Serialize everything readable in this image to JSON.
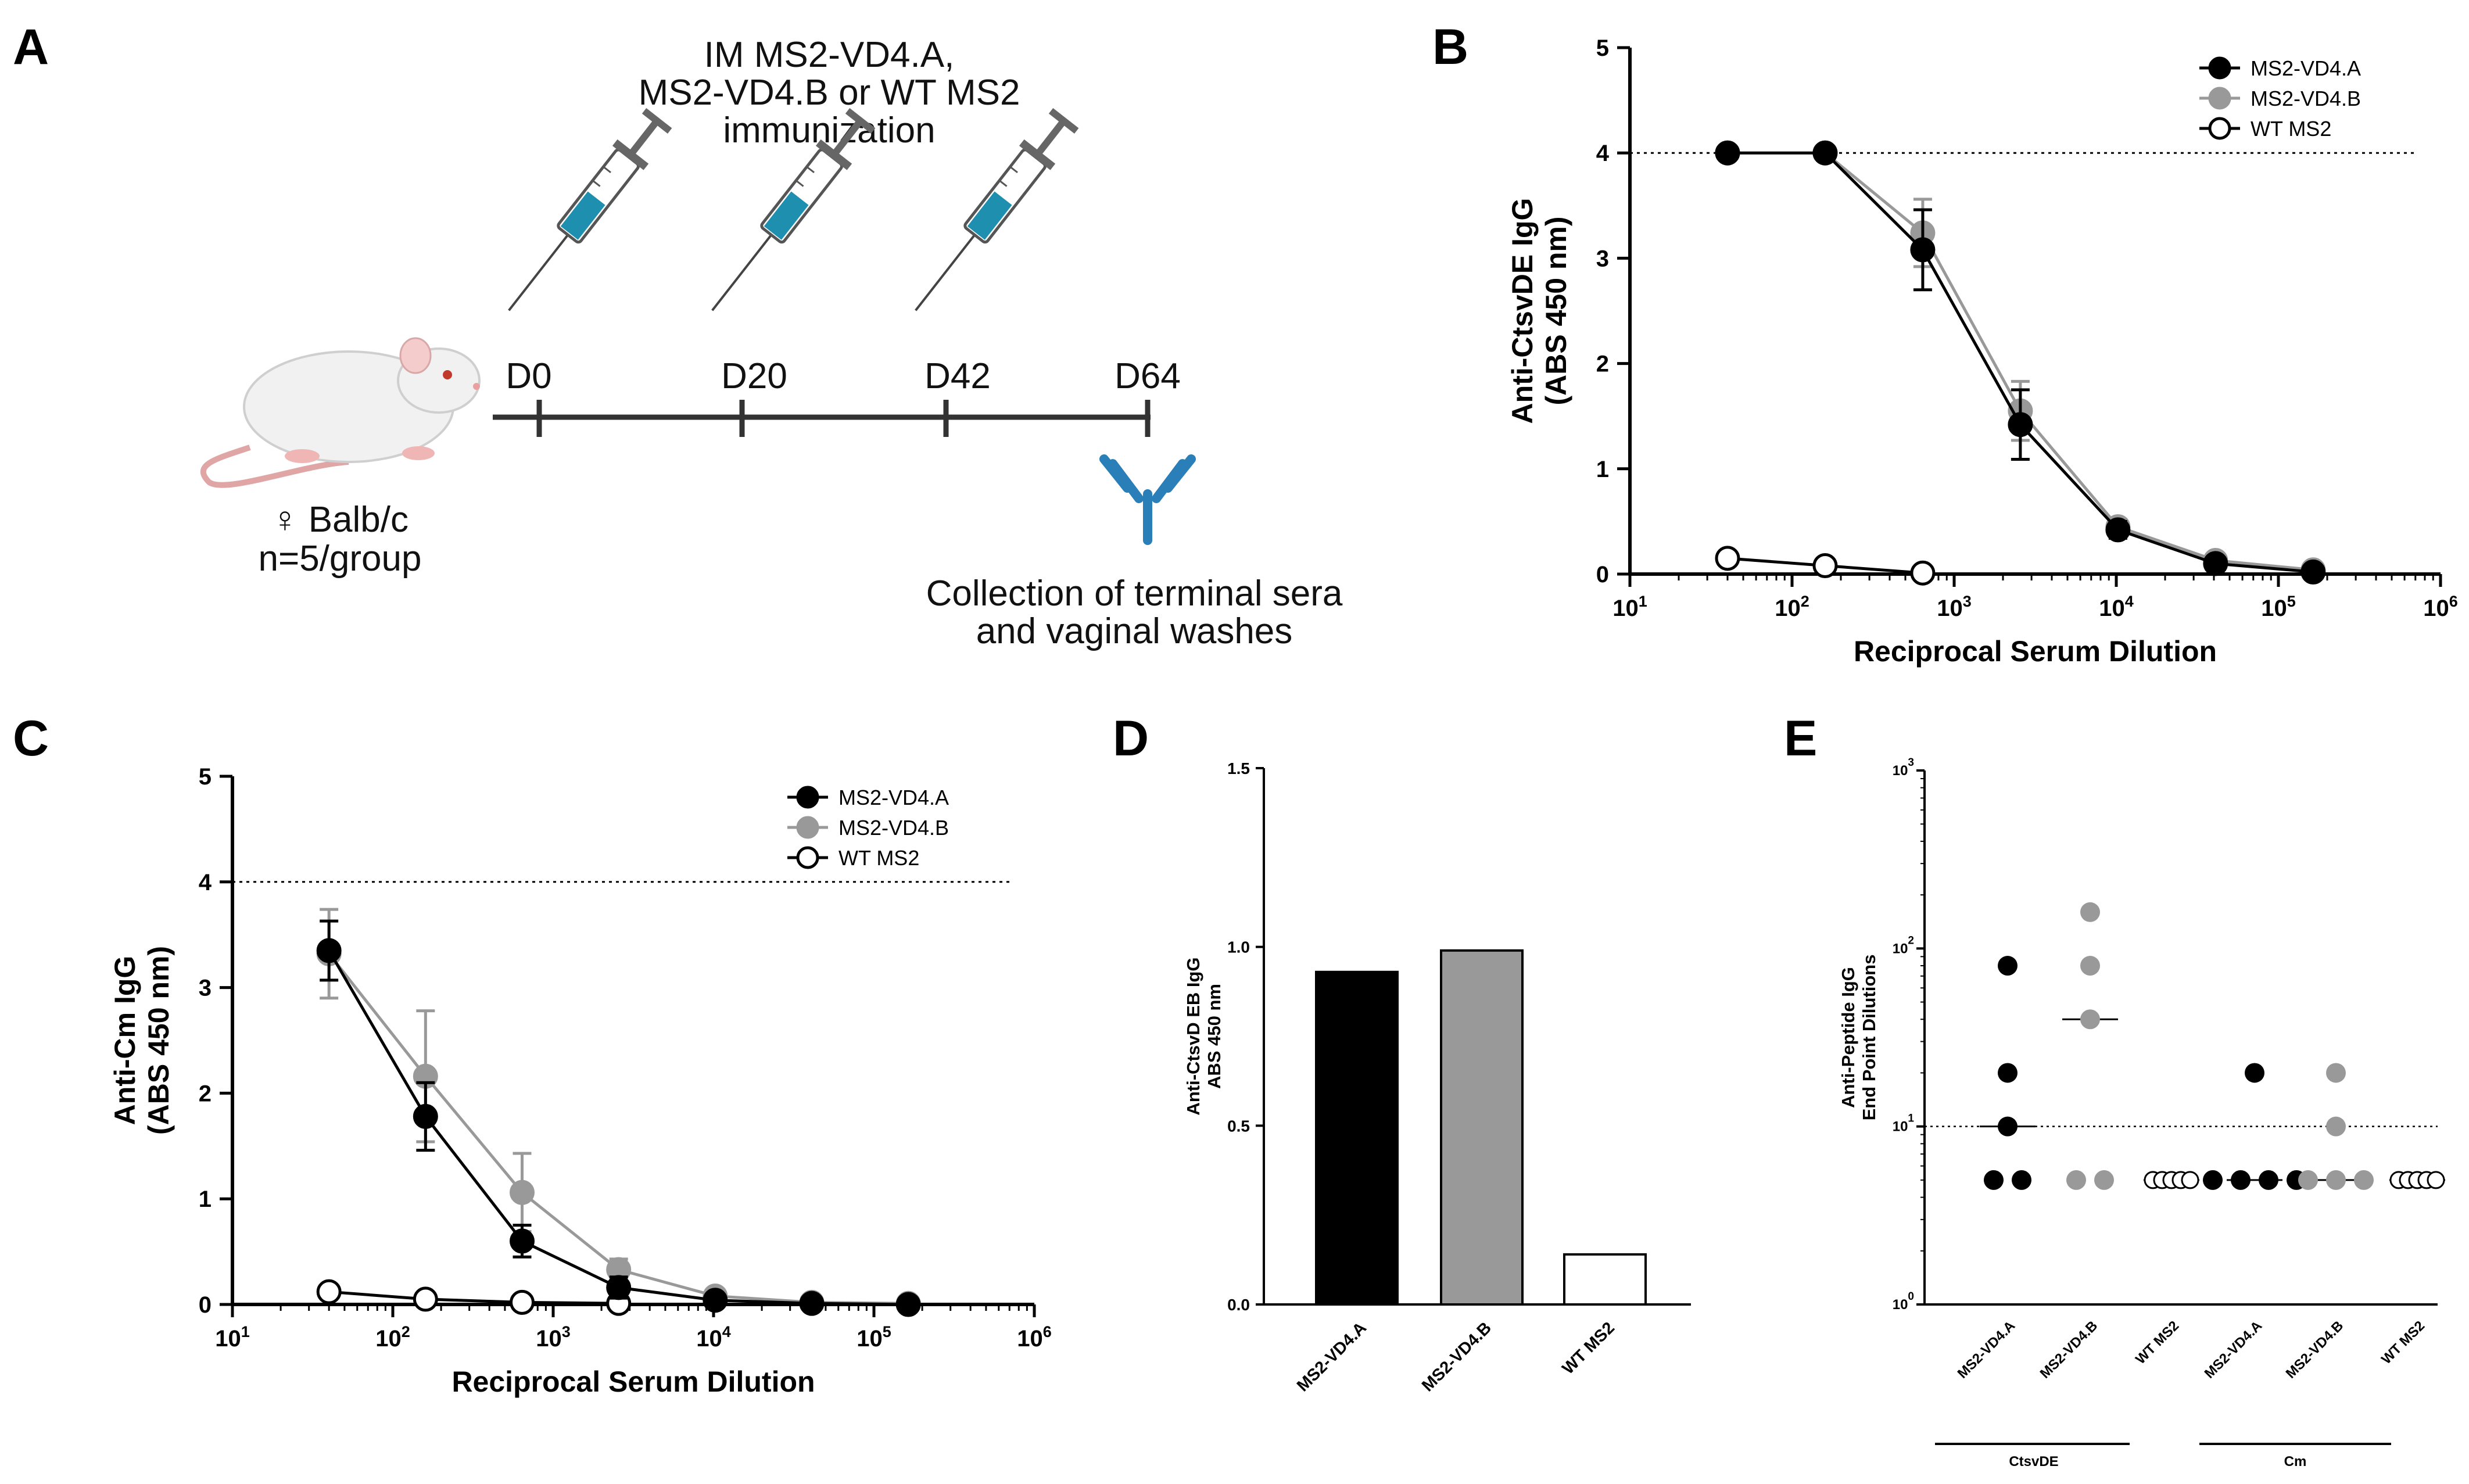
{
  "panels": {
    "a": "A",
    "b": "B",
    "c": "C",
    "d": "D",
    "e": "E"
  },
  "schematic": {
    "title_lines": [
      "IM MS2-VD4.A,",
      "MS2-VD4.B or WT MS2",
      "immunization"
    ],
    "days": [
      "D0",
      "D20",
      "D42",
      "D64"
    ],
    "mouse_lines": [
      "♀ Balb/c",
      "n=5/group"
    ],
    "collection_lines": [
      "Collection of terminal sera",
      "and vaginal washes"
    ]
  },
  "colors": {
    "black": "#000000",
    "gray": "#999999",
    "white": "#ffffff",
    "syringe_fill": "#1f8fb0",
    "antibody": "#2a7fb8"
  },
  "chart_data": [
    {
      "id": "B",
      "type": "line",
      "title": "",
      "xlabel": "Reciprocal Serum Dilution",
      "ylabel_lines": [
        "Anti-CtsvDE IgG",
        "(ABS 450 nm)"
      ],
      "xscale": "log",
      "xlim_exp": [
        1,
        6
      ],
      "ylim": [
        0,
        5
      ],
      "xtick_exps": [
        1,
        2,
        3,
        4,
        5,
        6
      ],
      "yticks": [
        0,
        1,
        2,
        3,
        4,
        5
      ],
      "reference_line": 4,
      "legend_position": "top-right",
      "series": [
        {
          "name": "MS2-VD4.A",
          "style": "black",
          "x": [
            40,
            160,
            640,
            2560,
            10240,
            40960,
            163840
          ],
          "y": [
            4.0,
            4.0,
            3.08,
            1.42,
            0.42,
            0.1,
            0.02
          ],
          "err": [
            0,
            0,
            0.38,
            0.33,
            0.08,
            0.04,
            0.02
          ]
        },
        {
          "name": "MS2-VD4.B",
          "style": "gray",
          "x": [
            40,
            160,
            640,
            2560,
            10240,
            40960,
            163840
          ],
          "y": [
            4.0,
            4.0,
            3.24,
            1.55,
            0.45,
            0.13,
            0.04
          ],
          "err": [
            0,
            0,
            0.32,
            0.28,
            0.07,
            0.05,
            0.02
          ]
        },
        {
          "name": "WT MS2",
          "style": "open",
          "x": [
            40,
            160,
            640
          ],
          "y": [
            0.15,
            0.08,
            0.01
          ],
          "err": [
            0,
            0,
            0
          ]
        }
      ]
    },
    {
      "id": "C",
      "type": "line",
      "title": "",
      "xlabel": "Reciprocal Serum Dilution",
      "ylabel_lines": [
        "Anti-Cm IgG",
        "(ABS 450 nm)"
      ],
      "xscale": "log",
      "xlim_exp": [
        1,
        6
      ],
      "ylim": [
        0,
        5
      ],
      "xtick_exps": [
        1,
        2,
        3,
        4,
        5,
        6
      ],
      "yticks": [
        0,
        1,
        2,
        3,
        4,
        5
      ],
      "reference_line": 4,
      "legend_position": "top-right",
      "series": [
        {
          "name": "MS2-VD4.A",
          "style": "black",
          "x": [
            40,
            160,
            640,
            2560,
            10240,
            40960,
            163840
          ],
          "y": [
            3.35,
            1.78,
            0.6,
            0.16,
            0.04,
            0.01,
            0.0
          ],
          "err": [
            0.28,
            0.32,
            0.15,
            0.1,
            0.04,
            0.02,
            0.0
          ]
        },
        {
          "name": "MS2-VD4.B",
          "style": "gray",
          "x": [
            40,
            160,
            640,
            2560,
            10240,
            40960,
            163840
          ],
          "y": [
            3.32,
            2.16,
            1.06,
            0.33,
            0.08,
            0.02,
            0.01
          ],
          "err": [
            0.42,
            0.62,
            0.37,
            0.1,
            0.05,
            0.02,
            0.01
          ]
        },
        {
          "name": "WT MS2",
          "style": "open",
          "x": [
            40,
            160,
            640,
            2560
          ],
          "y": [
            0.12,
            0.05,
            0.02,
            0.01
          ],
          "err": [
            0,
            0,
            0,
            0
          ]
        }
      ]
    },
    {
      "id": "D",
      "type": "bar",
      "title": "",
      "xlabel": "",
      "ylabel_lines": [
        "Anti-CtsvD EB IgG",
        "ABS 450 nm"
      ],
      "categories": [
        "MS2-VD4.A",
        "MS2-VD4.B",
        "WT MS2"
      ],
      "values": [
        0.93,
        0.99,
        0.14
      ],
      "styles": [
        "black",
        "gray",
        "white"
      ],
      "ylim": [
        0,
        1.5
      ],
      "yticks": [
        "0.0",
        "0.5",
        "1.0",
        "1.5"
      ]
    },
    {
      "id": "E",
      "type": "scatter",
      "title": "",
      "xlabel": "",
      "ylabel_lines": [
        "Anti-Peptide IgG",
        "End Point Dilutions"
      ],
      "yscale": "log",
      "ylim_exp": [
        0,
        3
      ],
      "ytick_exps": [
        0,
        1,
        2,
        3
      ],
      "reference_line": 10,
      "categories": [
        "MS2-VD4.A",
        "MS2-VD4.B",
        "WT MS2",
        "MS2-VD4.A",
        "MS2-VD4.B",
        "WT MS2"
      ],
      "styles": [
        "black",
        "gray",
        "open",
        "black",
        "gray",
        "open"
      ],
      "groups": [
        {
          "values": [
            80,
            20,
            10,
            5,
            5
          ],
          "median": 10
        },
        {
          "values": [
            160,
            80,
            40,
            5,
            5
          ],
          "median": 40
        },
        {
          "values": [
            5,
            5,
            5,
            5,
            5
          ],
          "median": 5
        },
        {
          "values": [
            20,
            5,
            5,
            5,
            5
          ],
          "median": 5
        },
        {
          "values": [
            20,
            10,
            5,
            5,
            5
          ],
          "median": 5
        },
        {
          "values": [
            5,
            5,
            5,
            5,
            5
          ],
          "median": 5
        }
      ],
      "group_labels": [
        "CtsvDE",
        "Cm"
      ]
    }
  ]
}
